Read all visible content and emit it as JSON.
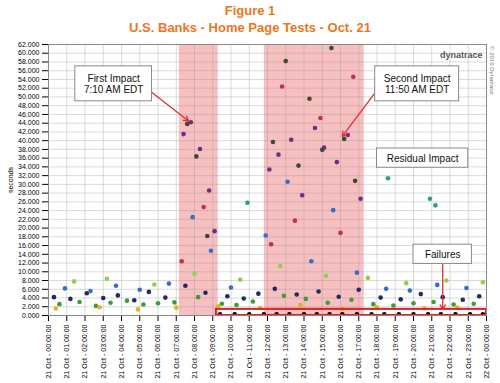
{
  "chart_data": {
    "type": "scatter",
    "title": "Figure 1",
    "subtitle": "U.S. Banks - Home Page Tests - Oct. 21",
    "y_label": "seconds",
    "logo": "dynatrace",
    "copyright": "© 2016 Dynatrace",
    "marker": "circle",
    "grid": true,
    "xlim": [
      0,
      24
    ],
    "ylim": [
      0,
      62
    ],
    "xticks": [
      {
        "value": 0,
        "label": "21 Oct - 00:00:00"
      },
      {
        "value": 1,
        "label": "21 Oct - 01:00:00"
      },
      {
        "value": 2,
        "label": "21 Oct - 02:00:00"
      },
      {
        "value": 3,
        "label": "21 Oct - 03:00:00"
      },
      {
        "value": 4,
        "label": "21 Oct - 04:00:00"
      },
      {
        "value": 5,
        "label": "21 Oct - 05:00:00"
      },
      {
        "value": 6,
        "label": "21 Oct - 06:00:00"
      },
      {
        "value": 7,
        "label": "21 Oct - 07:00:00"
      },
      {
        "value": 8,
        "label": "21 Oct - 08:00:00"
      },
      {
        "value": 9,
        "label": "21 Oct - 09:00:00"
      },
      {
        "value": 10,
        "label": "21 Oct - 10:00:00"
      },
      {
        "value": 11,
        "label": "21 Oct - 11:00:00"
      },
      {
        "value": 12,
        "label": "21 Oct - 12:00:00"
      },
      {
        "value": 13,
        "label": "21 Oct - 13:00:00"
      },
      {
        "value": 14,
        "label": "21 Oct - 14:00:00"
      },
      {
        "value": 15,
        "label": "21 Oct - 15:00:00"
      },
      {
        "value": 16,
        "label": "21 Oct - 16:00:00"
      },
      {
        "value": 17,
        "label": "21 Oct - 17:00:00"
      },
      {
        "value": 18,
        "label": "21 Oct - 18:00:00"
      },
      {
        "value": 19,
        "label": "21 Oct - 19:00:00"
      },
      {
        "value": 20,
        "label": "21 Oct - 20:00:00"
      },
      {
        "value": 21,
        "label": "21 Oct - 21:00:00"
      },
      {
        "value": 22,
        "label": "21 Oct - 22:00:00"
      },
      {
        "value": 23,
        "label": "21 Oct - 23:00:00"
      },
      {
        "value": 24,
        "label": "22 Oct - 00:00:00"
      }
    ],
    "yticks": [
      {
        "value": 0,
        "label": "0.000"
      },
      {
        "value": 2,
        "label": "2.000"
      },
      {
        "value": 4,
        "label": "4.000"
      },
      {
        "value": 6,
        "label": "6.000"
      },
      {
        "value": 8,
        "label": "8.000"
      },
      {
        "value": 10,
        "label": "10.000"
      },
      {
        "value": 12,
        "label": "12.000"
      },
      {
        "value": 14,
        "label": "14.000"
      },
      {
        "value": 16,
        "label": "16.000"
      },
      {
        "value": 18,
        "label": "18.000"
      },
      {
        "value": 20,
        "label": "20.000"
      },
      {
        "value": 22,
        "label": "22.000"
      },
      {
        "value": 24,
        "label": "24.000"
      },
      {
        "value": 26,
        "label": "26.000"
      },
      {
        "value": 28,
        "label": "28.000"
      },
      {
        "value": 30,
        "label": "30.000"
      },
      {
        "value": 32,
        "label": "32.000"
      },
      {
        "value": 34,
        "label": "34.000"
      },
      {
        "value": 36,
        "label": "36.000"
      },
      {
        "value": 38,
        "label": "38.000"
      },
      {
        "value": 40,
        "label": "40.000"
      },
      {
        "value": 42,
        "label": "42.000"
      },
      {
        "value": 44,
        "label": "44.000"
      },
      {
        "value": 46,
        "label": "46.000"
      },
      {
        "value": 48,
        "label": "48.000"
      },
      {
        "value": 50,
        "label": "50.000"
      },
      {
        "value": 52,
        "label": "52.000"
      },
      {
        "value": 54,
        "label": "54.000"
      },
      {
        "value": 56,
        "label": "56.000"
      },
      {
        "value": 58,
        "label": "58.000"
      },
      {
        "value": 60,
        "label": "60.000"
      },
      {
        "value": 62,
        "label": "62.000"
      }
    ],
    "shaded_ranges": [
      {
        "start": 7.17,
        "end": 9.3,
        "color": "#f4a9a9"
      },
      {
        "start": 11.83,
        "end": 17.3,
        "color": "#f4a9a9"
      }
    ],
    "failures": {
      "start": 9.2,
      "end": 24,
      "color": "#e02020"
    },
    "annotations": [
      {
        "text": [
          "First Impact",
          "7:10 AM EDT"
        ]
      },
      {
        "text": [
          "Second Impact",
          "11:50 AM EDT"
        ]
      },
      {
        "text": [
          "Residual Impact"
        ]
      },
      {
        "text": [
          "Failures"
        ]
      }
    ],
    "series": [
      {
        "color": "#1f2a6b",
        "x": [
          0.3,
          1.2,
          2.1,
          3.0,
          3.8,
          4.7,
          5.5,
          6.4,
          7.5,
          8.6,
          9.8,
          10.7,
          11.5,
          12.4,
          13.6,
          14.8,
          15.9,
          17.0,
          18.2,
          19.3,
          20.4,
          21.6,
          22.7,
          23.6
        ],
        "values": [
          4.2,
          3.8,
          5.1,
          4.0,
          4.6,
          3.5,
          5.4,
          4.1,
          6.8,
          5.2,
          4.4,
          3.9,
          5.0,
          6.1,
          4.8,
          5.5,
          4.3,
          5.9,
          4.1,
          3.7,
          4.9,
          4.2,
          3.6,
          4.4
        ]
      },
      {
        "color": "#3a9e3a",
        "x": [
          0.6,
          1.7,
          2.6,
          3.4,
          4.3,
          5.2,
          6.0,
          6.9,
          8.2,
          9.5,
          10.3,
          11.2,
          12.9,
          14.1,
          15.3,
          16.6,
          17.8,
          18.9,
          20.0,
          21.1,
          22.2,
          23.3
        ],
        "values": [
          2.6,
          3.1,
          2.2,
          2.9,
          3.4,
          2.5,
          2.8,
          3.0,
          4.2,
          2.7,
          2.4,
          3.2,
          4.5,
          3.8,
          2.9,
          3.6,
          2.6,
          2.3,
          2.8,
          3.1,
          2.5,
          2.7
        ]
      },
      {
        "color": "#2f6fd0",
        "x": [
          0.9,
          2.3,
          3.7,
          5.0,
          6.6,
          7.9,
          8.9,
          10.0,
          11.9,
          13.1,
          14.4,
          15.6,
          16.9,
          18.5,
          19.8,
          21.3,
          22.9
        ],
        "values": [
          6.2,
          5.6,
          6.8,
          5.9,
          7.3,
          22.5,
          14.8,
          6.4,
          18.3,
          30.6,
          12.4,
          24.1,
          9.8,
          6.1,
          5.7,
          7.0,
          6.3
        ]
      },
      {
        "color": "#6b2f8f",
        "x": [
          7.4,
          7.8,
          8.3,
          8.8,
          9.1,
          12.1,
          12.6,
          13.3,
          13.9,
          14.6,
          15.1,
          15.8,
          16.4,
          17.1
        ],
        "values": [
          41.5,
          44.2,
          38.1,
          28.6,
          19.3,
          33.4,
          36.8,
          40.2,
          27.5,
          42.9,
          38.4,
          35.1,
          41.3,
          26.7
        ]
      },
      {
        "color": "#3d4a2a",
        "x": [
          7.6,
          8.1,
          8.7,
          12.3,
          13.0,
          13.7,
          14.3,
          15.0,
          15.5,
          16.2,
          16.8
        ],
        "values": [
          43.8,
          36.4,
          18.2,
          39.7,
          58.2,
          34.3,
          49.6,
          37.9,
          61.2,
          40.4,
          30.8
        ]
      },
      {
        "color": "#c0304f",
        "x": [
          7.3,
          8.5,
          12.2,
          12.8,
          13.5,
          14.9,
          16.0,
          16.7
        ],
        "values": [
          12.4,
          24.8,
          16.3,
          52.4,
          21.7,
          45.2,
          18.9,
          54.6
        ]
      },
      {
        "color": "#2a9d8f",
        "x": [
          10.9,
          18.6,
          20.9,
          21.2
        ],
        "values": [
          25.8,
          31.4,
          26.7,
          25.2
        ]
      },
      {
        "color": "#e8b020",
        "x": [
          0.4,
          2.8,
          4.9,
          7.0,
          9.3,
          11.6,
          13.8,
          16.1,
          18.0,
          20.6,
          22.4
        ],
        "values": [
          1.6,
          1.9,
          1.4,
          1.8,
          2.1,
          1.7,
          2.4,
          1.5,
          1.9,
          1.6,
          1.8
        ]
      },
      {
        "color": "#8fd14f",
        "x": [
          1.4,
          3.2,
          5.8,
          8.0,
          10.5,
          12.7,
          15.2,
          17.5,
          19.6,
          21.8,
          23.8
        ],
        "values": [
          7.8,
          8.4,
          7.1,
          9.6,
          8.2,
          11.3,
          9.1,
          8.6,
          7.4,
          8.0,
          7.6
        ]
      },
      {
        "color": "#000000",
        "x": [
          9.4,
          10.2,
          11.0,
          11.8,
          12.5,
          13.2,
          14.0,
          14.7,
          15.4,
          16.1,
          16.9,
          17.7,
          18.4,
          19.2,
          20.0,
          20.8,
          21.5,
          22.3,
          23.1,
          23.8
        ],
        "values": [
          0.3,
          0.3,
          0.3,
          0.3,
          0.3,
          0.3,
          0.3,
          0.3,
          0.3,
          0.3,
          0.3,
          0.3,
          0.3,
          0.3,
          0.3,
          0.3,
          0.3,
          0.3,
          0.3,
          0.3
        ]
      }
    ]
  }
}
